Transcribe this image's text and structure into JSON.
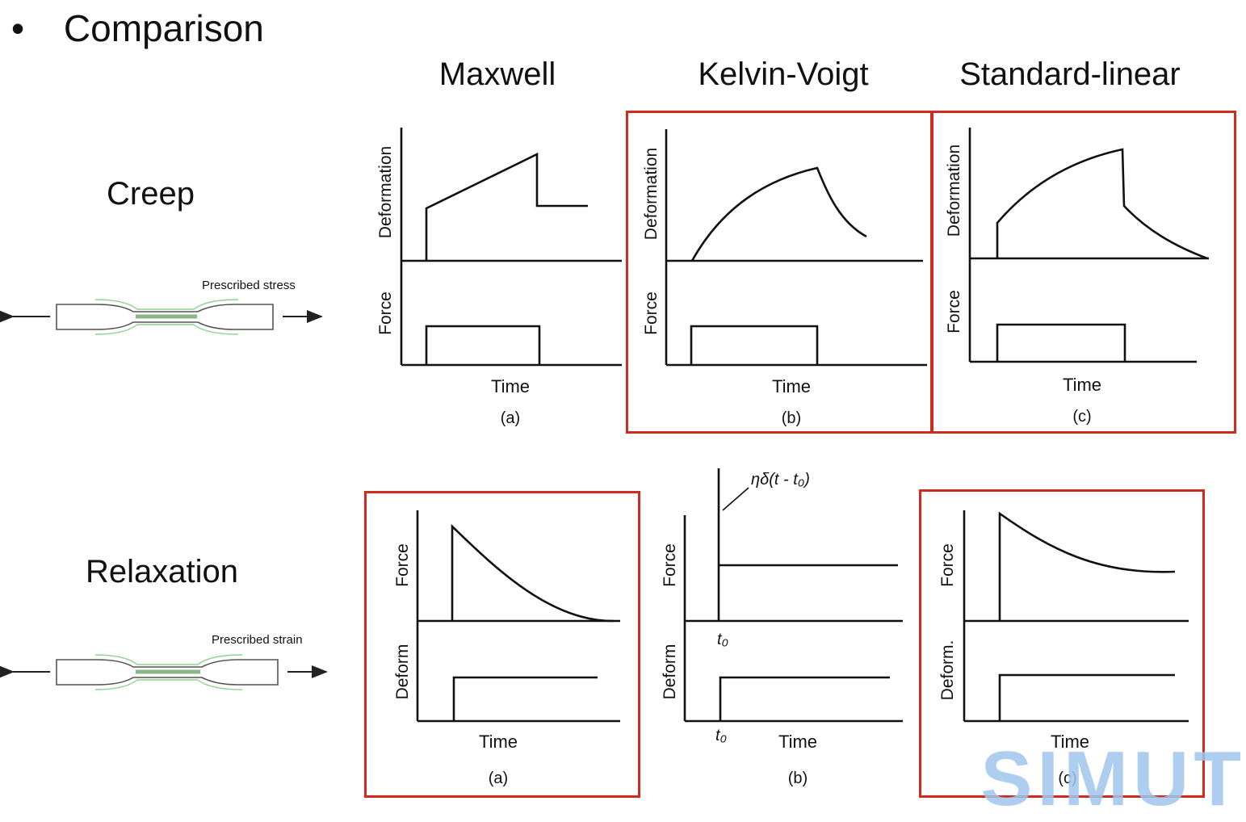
{
  "slide": {
    "bullet": "•",
    "title": "Comparison"
  },
  "columns": {
    "maxwell": "Maxwell",
    "kelvin": "Kelvin-Voigt",
    "standard": "Standard-linear"
  },
  "rows": {
    "creep": "Creep",
    "relaxation": "Relaxation"
  },
  "specimens": {
    "creep_caption": "Prescribed stress",
    "relax_caption": "Prescribed strain"
  },
  "axis_labels": {
    "deformation": "Deformation",
    "force": "Force",
    "deform": "Deform",
    "deform_dot": "Deform.",
    "time": "Time",
    "t0": "t₀",
    "impulse": "ηδ(t - t₀)"
  },
  "captions": {
    "a": "(a)",
    "b": "(b)",
    "c": "(c)"
  },
  "watermark": "SIMUT",
  "colors": {
    "highlight_box": "#d12a1f",
    "specimen_glow": "#5bbf5b",
    "watermark": "#9fc6ec"
  }
}
